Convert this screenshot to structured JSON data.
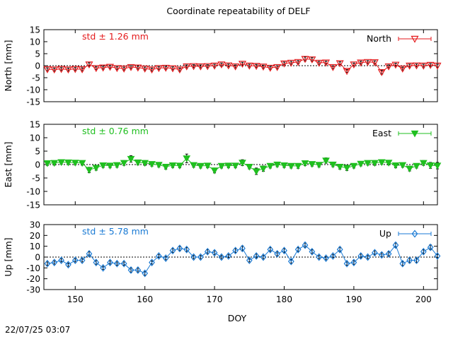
{
  "timestamp": "22/07/25 03:07",
  "chart_data": {
    "type": "line",
    "title": "Coordinate repeatability of DELF",
    "xlabel": "DOY",
    "xlim": [
      145.5,
      202
    ],
    "x_ticks": [
      150,
      160,
      170,
      180,
      190,
      200
    ],
    "x": [
      146,
      147,
      148,
      149,
      150,
      151,
      152,
      153,
      154,
      155,
      156,
      157,
      158,
      159,
      160,
      161,
      162,
      163,
      164,
      165,
      166,
      167,
      168,
      169,
      170,
      171,
      172,
      173,
      174,
      175,
      176,
      177,
      178,
      179,
      180,
      181,
      182,
      183,
      184,
      185,
      186,
      187,
      188,
      189,
      190,
      191,
      192,
      193,
      194,
      195,
      196,
      197,
      198,
      199,
      200,
      201,
      202
    ],
    "panels": [
      {
        "ylabel": "North [mm]",
        "ylim": [
          -15,
          15
        ],
        "y_ticks": [
          -15,
          -10,
          -5,
          0,
          5,
          10,
          15
        ],
        "std_text": "std ± 1.26 mm",
        "color": "#e41a1c",
        "marker": "triangle-down-open",
        "series": [
          {
            "name": "North",
            "values": [
              -1.5,
              -1.6,
              -1.4,
              -1.6,
              -1.4,
              -1.5,
              0.5,
              -1.0,
              -0.8,
              -0.5,
              -1.0,
              -1.2,
              -0.6,
              -0.8,
              -1.2,
              -1.6,
              -1.0,
              -0.9,
              -1.1,
              -1.6,
              -0.3,
              -0.2,
              -0.3,
              -0.2,
              0.0,
              0.5,
              0.1,
              -0.3,
              0.8,
              0.0,
              -0.1,
              -0.4,
              -0.9,
              -0.6,
              0.9,
              1.2,
              1.5,
              2.8,
              2.6,
              1.2,
              1.3,
              -0.6,
              1.0,
              -2.2,
              0.5,
              1.3,
              1.5,
              1.4,
              -2.7,
              -0.3,
              0.4,
              -1.2,
              0.0,
              0.1,
              0.0,
              0.3,
              0.0
            ],
            "errors": [
              0.6,
              0.6,
              0.6,
              0.6,
              0.6,
              0.6,
              0.7,
              0.6,
              0.6,
              0.6,
              0.6,
              0.6,
              0.6,
              0.6,
              0.6,
              0.6,
              0.6,
              0.6,
              0.6,
              0.6,
              0.6,
              0.6,
              0.6,
              0.6,
              0.6,
              0.6,
              0.6,
              0.6,
              0.6,
              0.6,
              0.6,
              0.6,
              0.6,
              0.6,
              0.6,
              0.6,
              0.6,
              0.8,
              0.7,
              0.6,
              0.6,
              0.6,
              0.6,
              0.6,
              0.6,
              0.6,
              0.6,
              0.6,
              0.8,
              0.6,
              0.6,
              0.6,
              0.6,
              0.6,
              0.6,
              0.6,
              0.6
            ]
          }
        ]
      },
      {
        "ylabel": "East [mm]",
        "ylim": [
          -15,
          15
        ],
        "y_ticks": [
          -15,
          -10,
          -5,
          0,
          5,
          10,
          15
        ],
        "std_text": "std ± 0.76 mm",
        "color": "#1fbf1f",
        "marker": "triangle-down-filled",
        "series": [
          {
            "name": "East",
            "values": [
              0.5,
              0.6,
              0.9,
              0.8,
              0.7,
              0.6,
              -2.0,
              -1.2,
              -0.3,
              -0.4,
              -0.2,
              0.6,
              2.1,
              0.8,
              0.6,
              0.2,
              -0.1,
              -0.8,
              -0.3,
              -0.4,
              2.3,
              -0.2,
              -0.5,
              -0.4,
              -2.2,
              -0.5,
              -0.4,
              -0.4,
              0.7,
              -0.8,
              -2.5,
              -1.5,
              -0.5,
              0.0,
              -0.3,
              -0.5,
              -0.5,
              0.5,
              0.2,
              -0.1,
              1.5,
              0.0,
              -0.8,
              -1.2,
              -0.5,
              0.3,
              0.6,
              0.6,
              0.9,
              0.7,
              -0.3,
              -0.2,
              -1.5,
              -0.5,
              0.6,
              -0.3,
              -0.4
            ],
            "errors": [
              0.8,
              0.8,
              0.8,
              0.8,
              0.8,
              0.8,
              1.0,
              0.9,
              0.8,
              0.8,
              0.8,
              0.9,
              1.2,
              0.9,
              0.9,
              0.8,
              0.8,
              0.9,
              0.8,
              0.8,
              1.6,
              0.8,
              0.8,
              0.8,
              0.9,
              0.8,
              0.8,
              0.8,
              1.1,
              0.8,
              1.2,
              1.0,
              0.8,
              0.8,
              0.8,
              0.8,
              0.9,
              0.9,
              0.8,
              0.8,
              1.0,
              0.8,
              0.9,
              1.0,
              0.8,
              0.8,
              0.8,
              0.9,
              0.8,
              0.8,
              0.9,
              0.8,
              0.9,
              0.8,
              0.9,
              1.1,
              1.2
            ]
          }
        ]
      },
      {
        "ylabel": "Up [mm]",
        "ylim": [
          -30,
          30
        ],
        "y_ticks": [
          -30,
          -20,
          -10,
          0,
          10,
          20,
          30
        ],
        "std_text": "std ± 5.78 mm",
        "color": "#1a7ad4",
        "marker": "diamond-open",
        "series": [
          {
            "name": "Up",
            "values": [
              -6,
              -5,
              -3,
              -7,
              -3,
              -3,
              3,
              -5,
              -10,
              -5,
              -6,
              -6,
              -12,
              -12,
              -15,
              -5,
              1,
              -1,
              6,
              8,
              7,
              0,
              0,
              5,
              4,
              0,
              1,
              6,
              8,
              -3,
              1,
              0,
              7,
              3,
              6,
              -4,
              7,
              11,
              5,
              0,
              -1,
              1,
              7,
              -6,
              -5,
              1,
              0,
              4,
              2,
              3,
              11,
              -6,
              -3,
              -3,
              5,
              9,
              1
            ],
            "errors": [
              1.5,
              1.5,
              1.5,
              1.5,
              1.5,
              1.5,
              2.0,
              1.8,
              1.5,
              1.5,
              1.5,
              1.5,
              2.0,
              1.8,
              1.8,
              1.5,
              1.5,
              1.5,
              1.8,
              2.0,
              1.8,
              1.5,
              1.5,
              1.8,
              1.8,
              1.5,
              1.5,
              1.8,
              2.2,
              1.5,
              1.8,
              1.5,
              1.8,
              1.8,
              1.8,
              1.8,
              1.8,
              2.0,
              1.8,
              1.5,
              1.5,
              1.5,
              2.0,
              1.5,
              1.8,
              1.8,
              1.5,
              1.8,
              1.8,
              1.8,
              2.0,
              1.8,
              2.2,
              2.0,
              1.8,
              2.2,
              1.5
            ]
          }
        ]
      }
    ]
  }
}
